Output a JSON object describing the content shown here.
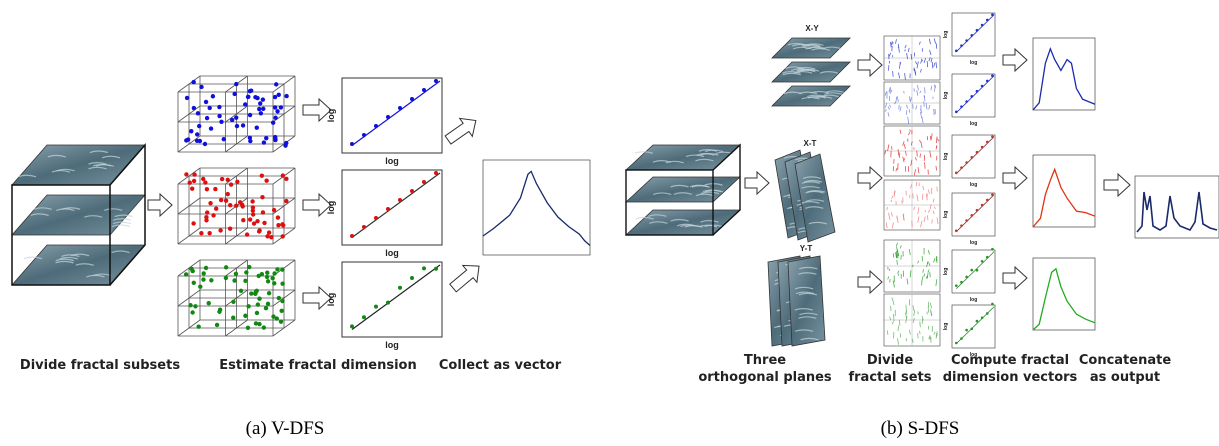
{
  "panel_a": {
    "steps": [
      "Divide fractal subsets",
      "Estimate fractal dimension",
      "Collect as vector"
    ],
    "axis_label": "log",
    "caption": "(a) V-DFS"
  },
  "panel_b": {
    "planes": [
      "X-Y",
      "X-T",
      "Y-T"
    ],
    "steps": [
      [
        "Three",
        "orthogonal planes"
      ],
      [
        "Divide",
        "fractal sets"
      ],
      [
        "Compute fractal",
        "dimension vectors"
      ],
      [
        "Concatenate",
        "as output"
      ]
    ],
    "axis_label": "log",
    "caption": "(b) S-DFS"
  }
}
